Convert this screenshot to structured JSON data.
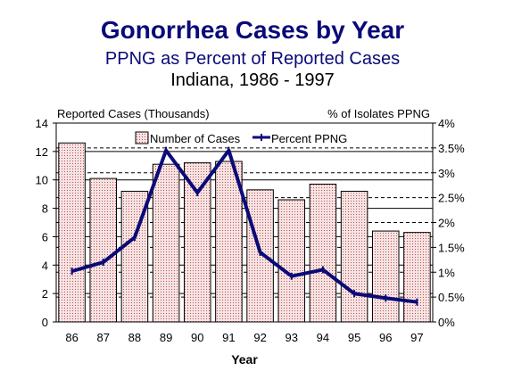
{
  "colors": {
    "title": "#0a0a78",
    "line": "#0a0a78",
    "bar_fill": "#f3e4e4",
    "bar_dots": "#d44a4a"
  },
  "chart_data": {
    "type": "bar",
    "title": "Gonorrhea Cases by Year",
    "subtitle1": "PPNG as Percent of Reported Cases",
    "subtitle2": "Indiana, 1986 - 1997",
    "xlabel": "Year",
    "ylabel_left": "Reported Cases (Thousands)",
    "ylabel_right": "% of Isolates PPNG",
    "categories": [
      "86",
      "87",
      "88",
      "89",
      "90",
      "91",
      "92",
      "93",
      "94",
      "95",
      "96",
      "97"
    ],
    "ylim_left": [
      0,
      14
    ],
    "yticks_left": [
      "0",
      "2",
      "4",
      "6",
      "8",
      "10",
      "12",
      "14"
    ],
    "ylim_right": [
      0,
      4
    ],
    "yticks_right": [
      "0%",
      "0.5%",
      "1%",
      "1.5%",
      "2%",
      "2.5%",
      "3%",
      "3.5%",
      "4%"
    ],
    "grid": "horizontal",
    "legend_position": "top",
    "series": [
      {
        "name": "Number of Cases",
        "type": "bar",
        "axis": "left",
        "values": [
          12.6,
          10.1,
          9.2,
          11.1,
          11.2,
          11.3,
          9.3,
          8.6,
          9.7,
          9.2,
          6.4,
          6.3
        ]
      },
      {
        "name": "Percent PPNG",
        "type": "line",
        "axis": "right",
        "values": [
          1.02,
          1.2,
          1.7,
          3.45,
          2.6,
          3.45,
          1.4,
          0.92,
          1.05,
          0.57,
          0.48,
          0.4
        ]
      }
    ]
  }
}
